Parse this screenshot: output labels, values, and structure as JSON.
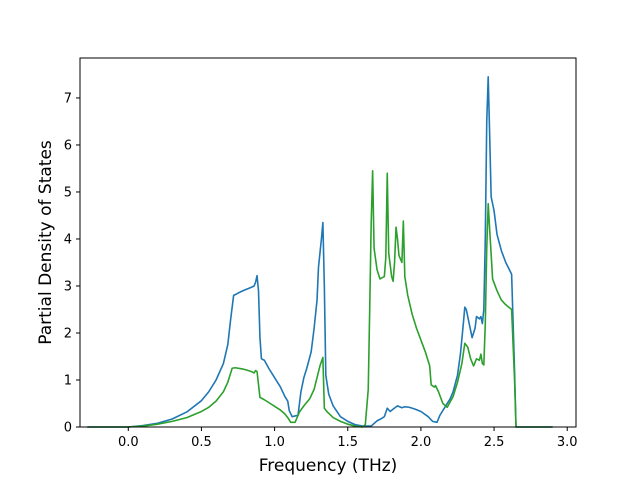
{
  "chart_data": {
    "type": "line",
    "title": "",
    "xlabel": "Frequency (THz)",
    "ylabel": "Partial Density of States",
    "xlim": [
      -0.33,
      3.06
    ],
    "ylim": [
      0,
      7.85
    ],
    "xticks": [
      0.0,
      0.5,
      1.0,
      1.5,
      2.0,
      2.5,
      3.0
    ],
    "xtick_labels": [
      "0.0",
      "0.5",
      "1.0",
      "1.5",
      "2.0",
      "2.5",
      "3.0"
    ],
    "yticks": [
      0,
      1,
      2,
      3,
      4,
      5,
      6,
      7
    ],
    "ytick_labels": [
      "0",
      "1",
      "2",
      "3",
      "4",
      "5",
      "6",
      "7"
    ],
    "grid": false,
    "legend": "none",
    "series": [
      {
        "color": "#1f77b4",
        "points": [
          [
            -0.28,
            0.0
          ],
          [
            0.0,
            0.0
          ],
          [
            0.1,
            0.03
          ],
          [
            0.2,
            0.08
          ],
          [
            0.3,
            0.17
          ],
          [
            0.4,
            0.32
          ],
          [
            0.5,
            0.56
          ],
          [
            0.55,
            0.75
          ],
          [
            0.6,
            1.0
          ],
          [
            0.65,
            1.35
          ],
          [
            0.68,
            1.75
          ],
          [
            0.7,
            2.3
          ],
          [
            0.72,
            2.8
          ],
          [
            0.74,
            2.83
          ],
          [
            0.77,
            2.88
          ],
          [
            0.8,
            2.92
          ],
          [
            0.84,
            2.97
          ],
          [
            0.86,
            3.0
          ],
          [
            0.87,
            3.08
          ],
          [
            0.88,
            3.22
          ],
          [
            0.89,
            2.9
          ],
          [
            0.9,
            1.9
          ],
          [
            0.91,
            1.45
          ],
          [
            0.93,
            1.42
          ],
          [
            0.96,
            1.25
          ],
          [
            1.0,
            1.05
          ],
          [
            1.04,
            0.85
          ],
          [
            1.07,
            0.65
          ],
          [
            1.09,
            0.55
          ],
          [
            1.1,
            0.35
          ],
          [
            1.12,
            0.22
          ],
          [
            1.16,
            0.25
          ],
          [
            1.18,
            0.75
          ],
          [
            1.2,
            1.05
          ],
          [
            1.22,
            1.25
          ],
          [
            1.25,
            1.6
          ],
          [
            1.27,
            2.1
          ],
          [
            1.29,
            2.7
          ],
          [
            1.3,
            3.4
          ],
          [
            1.32,
            4.0
          ],
          [
            1.33,
            4.35
          ],
          [
            1.34,
            3.0
          ],
          [
            1.35,
            1.1
          ],
          [
            1.37,
            0.7
          ],
          [
            1.4,
            0.45
          ],
          [
            1.45,
            0.22
          ],
          [
            1.5,
            0.12
          ],
          [
            1.55,
            0.05
          ],
          [
            1.6,
            0.02
          ],
          [
            1.64,
            0.02
          ],
          [
            1.66,
            0.02
          ],
          [
            1.7,
            0.13
          ],
          [
            1.73,
            0.18
          ],
          [
            1.75,
            0.22
          ],
          [
            1.77,
            0.4
          ],
          [
            1.79,
            0.33
          ],
          [
            1.81,
            0.38
          ],
          [
            1.84,
            0.45
          ],
          [
            1.87,
            0.41
          ],
          [
            1.89,
            0.43
          ],
          [
            1.92,
            0.42
          ],
          [
            1.96,
            0.38
          ],
          [
            2.0,
            0.33
          ],
          [
            2.05,
            0.22
          ],
          [
            2.08,
            0.12
          ],
          [
            2.11,
            0.1
          ],
          [
            2.13,
            0.25
          ],
          [
            2.17,
            0.45
          ],
          [
            2.2,
            0.6
          ],
          [
            2.22,
            0.75
          ],
          [
            2.25,
            1.1
          ],
          [
            2.27,
            1.55
          ],
          [
            2.29,
            2.2
          ],
          [
            2.3,
            2.55
          ],
          [
            2.31,
            2.5
          ],
          [
            2.33,
            2.2
          ],
          [
            2.35,
            1.9
          ],
          [
            2.37,
            2.1
          ],
          [
            2.38,
            2.35
          ],
          [
            2.4,
            2.3
          ],
          [
            2.41,
            2.35
          ],
          [
            2.42,
            2.2
          ],
          [
            2.43,
            2.5
          ],
          [
            2.44,
            4.0
          ],
          [
            2.45,
            6.5
          ],
          [
            2.46,
            7.45
          ],
          [
            2.47,
            6.2
          ],
          [
            2.48,
            4.9
          ],
          [
            2.5,
            4.6
          ],
          [
            2.52,
            4.1
          ],
          [
            2.55,
            3.75
          ],
          [
            2.58,
            3.5
          ],
          [
            2.62,
            3.25
          ],
          [
            2.64,
            1.2
          ],
          [
            2.65,
            0.0
          ],
          [
            2.9,
            0.0
          ]
        ]
      },
      {
        "color": "#2ca02c",
        "points": [
          [
            -0.28,
            0.0
          ],
          [
            0.0,
            0.0
          ],
          [
            0.1,
            0.02
          ],
          [
            0.2,
            0.06
          ],
          [
            0.3,
            0.12
          ],
          [
            0.4,
            0.2
          ],
          [
            0.5,
            0.33
          ],
          [
            0.55,
            0.42
          ],
          [
            0.6,
            0.55
          ],
          [
            0.65,
            0.75
          ],
          [
            0.68,
            0.95
          ],
          [
            0.7,
            1.15
          ],
          [
            0.71,
            1.25
          ],
          [
            0.73,
            1.26
          ],
          [
            0.77,
            1.24
          ],
          [
            0.8,
            1.22
          ],
          [
            0.84,
            1.18
          ],
          [
            0.86,
            1.15
          ],
          [
            0.87,
            1.2
          ],
          [
            0.88,
            1.18
          ],
          [
            0.9,
            0.63
          ],
          [
            0.93,
            0.58
          ],
          [
            0.97,
            0.5
          ],
          [
            1.0,
            0.44
          ],
          [
            1.04,
            0.36
          ],
          [
            1.07,
            0.28
          ],
          [
            1.09,
            0.2
          ],
          [
            1.11,
            0.1
          ],
          [
            1.14,
            0.1
          ],
          [
            1.17,
            0.32
          ],
          [
            1.2,
            0.45
          ],
          [
            1.24,
            0.6
          ],
          [
            1.27,
            0.8
          ],
          [
            1.29,
            1.05
          ],
          [
            1.31,
            1.3
          ],
          [
            1.33,
            1.48
          ],
          [
            1.34,
            0.4
          ],
          [
            1.36,
            0.32
          ],
          [
            1.4,
            0.2
          ],
          [
            1.45,
            0.12
          ],
          [
            1.5,
            0.06
          ],
          [
            1.55,
            0.02
          ],
          [
            1.6,
            0.0
          ],
          [
            1.62,
            0.05
          ],
          [
            1.64,
            0.8
          ],
          [
            1.65,
            2.5
          ],
          [
            1.66,
            4.3
          ],
          [
            1.67,
            5.45
          ],
          [
            1.68,
            3.8
          ],
          [
            1.7,
            3.35
          ],
          [
            1.72,
            3.15
          ],
          [
            1.75,
            3.2
          ],
          [
            1.76,
            3.6
          ],
          [
            1.77,
            5.4
          ],
          [
            1.78,
            3.7
          ],
          [
            1.8,
            3.2
          ],
          [
            1.81,
            3.1
          ],
          [
            1.82,
            3.5
          ],
          [
            1.83,
            4.25
          ],
          [
            1.84,
            4.0
          ],
          [
            1.85,
            3.65
          ],
          [
            1.87,
            3.5
          ],
          [
            1.88,
            4.38
          ],
          [
            1.89,
            3.2
          ],
          [
            1.91,
            2.8
          ],
          [
            1.94,
            2.4
          ],
          [
            1.97,
            2.1
          ],
          [
            2.0,
            1.85
          ],
          [
            2.03,
            1.6
          ],
          [
            2.06,
            1.3
          ],
          [
            2.07,
            0.9
          ],
          [
            2.09,
            0.85
          ],
          [
            2.1,
            0.88
          ],
          [
            2.12,
            0.75
          ],
          [
            2.15,
            0.5
          ],
          [
            2.18,
            0.42
          ],
          [
            2.22,
            0.65
          ],
          [
            2.25,
            0.95
          ],
          [
            2.28,
            1.35
          ],
          [
            2.3,
            1.78
          ],
          [
            2.32,
            1.7
          ],
          [
            2.34,
            1.45
          ],
          [
            2.36,
            1.3
          ],
          [
            2.38,
            1.45
          ],
          [
            2.4,
            1.42
          ],
          [
            2.41,
            1.55
          ],
          [
            2.42,
            1.35
          ],
          [
            2.43,
            1.32
          ],
          [
            2.44,
            2.2
          ],
          [
            2.45,
            3.8
          ],
          [
            2.46,
            4.75
          ],
          [
            2.47,
            4.2
          ],
          [
            2.49,
            3.15
          ],
          [
            2.52,
            2.9
          ],
          [
            2.55,
            2.7
          ],
          [
            2.58,
            2.6
          ],
          [
            2.62,
            2.5
          ],
          [
            2.64,
            1.0
          ],
          [
            2.65,
            0.0
          ],
          [
            2.9,
            0.0
          ]
        ]
      }
    ]
  }
}
